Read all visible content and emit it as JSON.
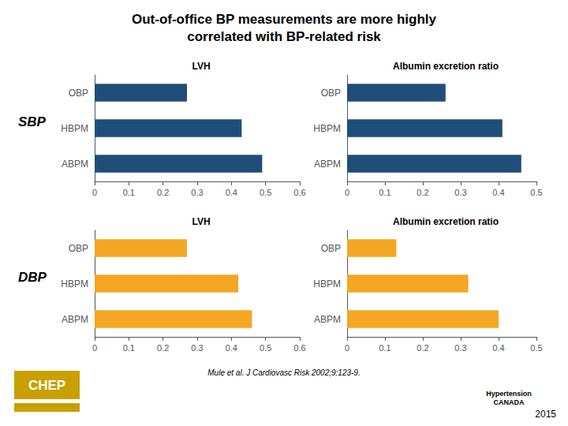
{
  "title": "Out-of-office BP measurements are more highly\ncorrelated with BP-related risk",
  "annotations": [
    {
      "text": "SBP"
    },
    {
      "text": "DBP"
    },
    {
      "text": "Mule et al. J Cardiovasc Risk 2002;9:123-9."
    },
    {
      "text": "2015"
    },
    {
      "text": "CHEP",
      "color": "#C8A000"
    },
    {
      "text": "Hypertension\nCANADA"
    }
  ],
  "chart_data": [
    {
      "type": "bar",
      "orientation": "horizontal",
      "title": "LVH",
      "categories": [
        "OBP",
        "HBPM",
        "ABPM"
      ],
      "values": [
        0.27,
        0.43,
        0.49
      ],
      "color": "#1F4E79",
      "xlim": [
        0,
        0.6
      ],
      "xticks": [
        0,
        0.1,
        0.2,
        0.3,
        0.4,
        0.5,
        0.6
      ],
      "grid": false
    },
    {
      "type": "bar",
      "orientation": "horizontal",
      "title": "Albumin excretion ratio",
      "categories": [
        "OBP",
        "HBPM",
        "ABPM"
      ],
      "values": [
        0.26,
        0.41,
        0.46
      ],
      "color": "#1F4E79",
      "xlim": [
        0,
        0.5
      ],
      "xticks": [
        0,
        0.1,
        0.2,
        0.3,
        0.4,
        0.5
      ],
      "grid": false
    },
    {
      "type": "bar",
      "orientation": "horizontal",
      "title": "LVH",
      "categories": [
        "OBP",
        "HBPM",
        "ABPM"
      ],
      "values": [
        0.27,
        0.42,
        0.46
      ],
      "color": "#F5A623",
      "xlim": [
        0,
        0.6
      ],
      "xticks": [
        0,
        0.1,
        0.2,
        0.3,
        0.4,
        0.5,
        0.6
      ],
      "grid": false
    },
    {
      "type": "bar",
      "orientation": "horizontal",
      "title": "Albumin excretion ratio",
      "categories": [
        "OBP",
        "HBPM",
        "ABPM"
      ],
      "values": [
        0.13,
        0.32,
        0.4
      ],
      "color": "#F5A623",
      "xlim": [
        0,
        0.5
      ],
      "xticks": [
        0,
        0.1,
        0.2,
        0.3,
        0.4,
        0.5
      ],
      "grid": false
    }
  ]
}
